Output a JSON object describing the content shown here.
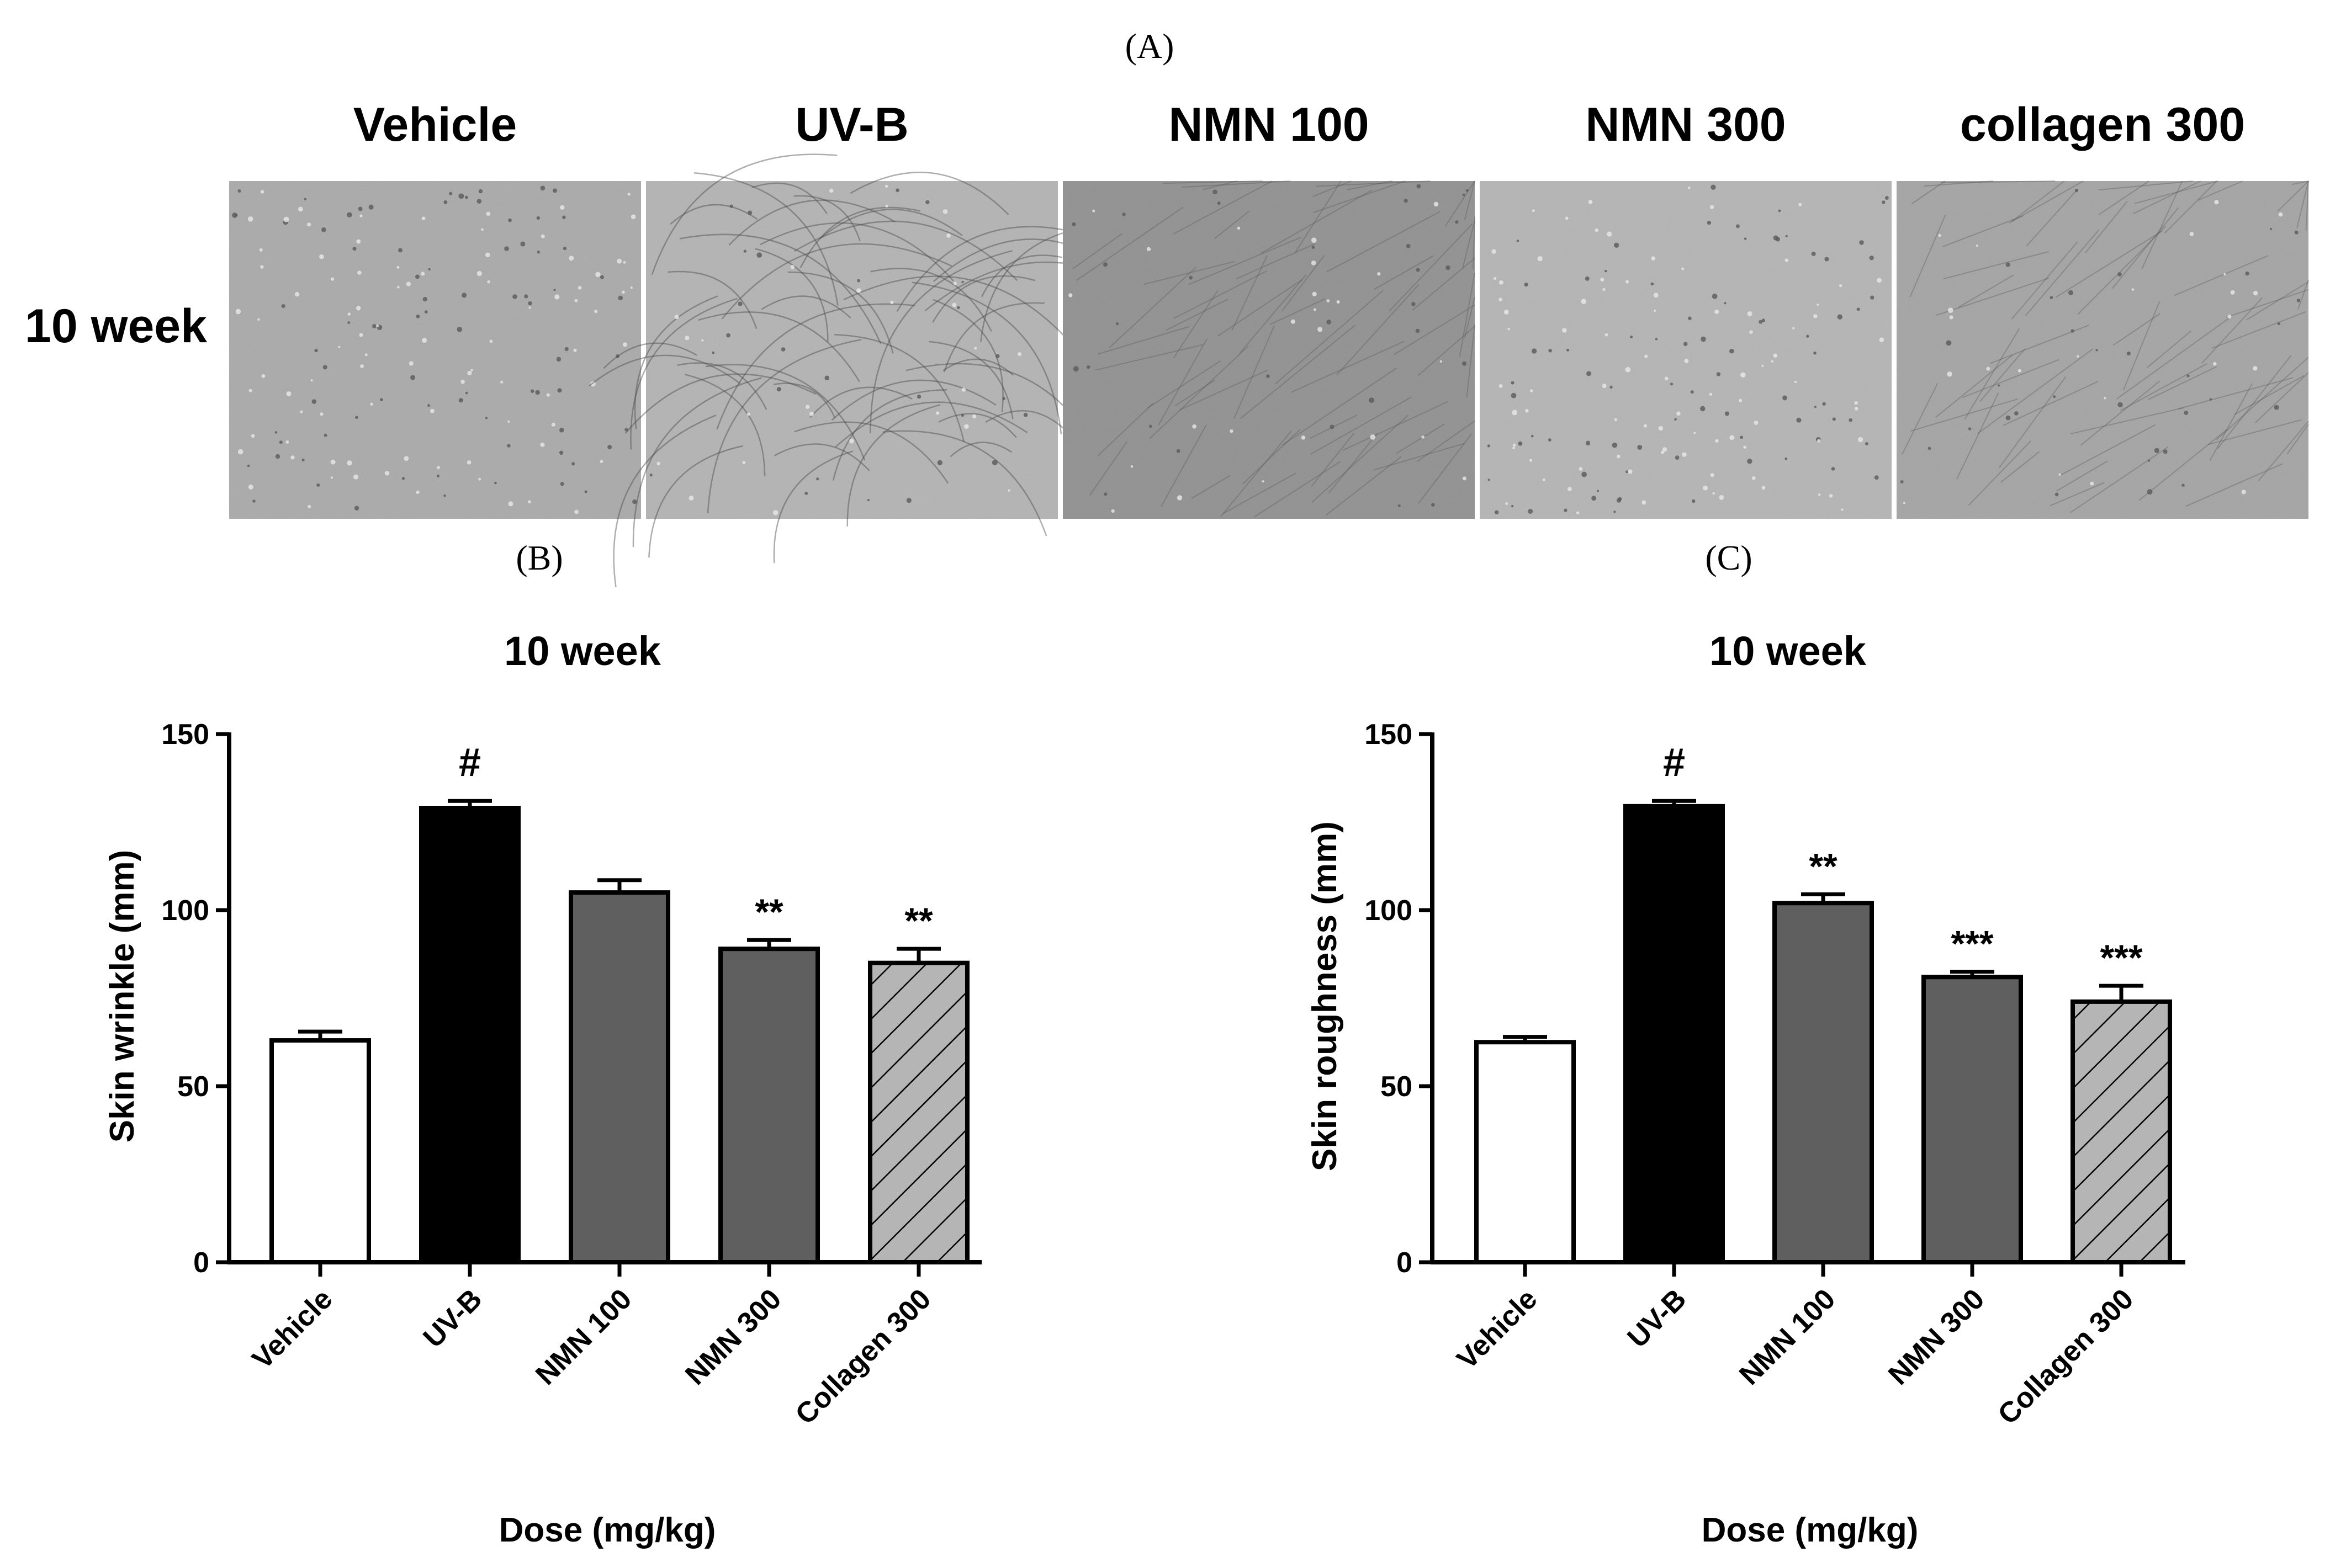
{
  "panel_a": {
    "label": "(A)",
    "row_label": "10 week",
    "photos": [
      {
        "label": "Vehicle",
        "tone": "#a9a9a9",
        "texture": "pores"
      },
      {
        "label": "UV-B",
        "tone": "#b3b3b3",
        "texture": "wrinkles"
      },
      {
        "label": "NMN 100",
        "tone": "#8f8f8f",
        "texture": "fine"
      },
      {
        "label": "NMN 300",
        "tone": "#b4b4b4",
        "texture": "pores"
      },
      {
        "label": "collagen 300",
        "tone": "#a3a3a3",
        "texture": "fine"
      }
    ]
  },
  "panel_b_label": "(B)",
  "panel_c_label": "(C)",
  "colors": {
    "white": "#ffffff",
    "black": "#000000",
    "gray": "#5f5f5f",
    "hatch_bg": "#b5b5b5"
  },
  "chart_data": [
    {
      "type": "bar",
      "title": "10 week",
      "xlabel": "Dose (mg/kg)",
      "ylabel": "Skin wrinkle (mm)",
      "ylim": [
        0,
        150
      ],
      "yticks": [
        0,
        50,
        100,
        150
      ],
      "categories": [
        "Vehicle",
        "UV-B",
        "NMN 100",
        "NMN 300",
        "Collagen 300"
      ],
      "values": [
        63,
        129,
        105,
        89,
        85
      ],
      "errors": [
        2.5,
        2,
        3.5,
        2.5,
        4
      ],
      "significance": [
        "",
        "#",
        "",
        "**",
        "**"
      ],
      "fills": [
        "white",
        "black",
        "gray",
        "gray",
        "hatch"
      ]
    },
    {
      "type": "bar",
      "title": "10 week",
      "xlabel": "Dose (mg/kg)",
      "ylabel": "Skin roughness (mm)",
      "ylim": [
        0,
        150
      ],
      "yticks": [
        0,
        50,
        100,
        150
      ],
      "categories": [
        "Vehicle",
        "UV-B",
        "NMN 100",
        "NMN 300",
        "Collagen 300"
      ],
      "values": [
        62.5,
        129.5,
        102,
        81,
        74
      ],
      "errors": [
        1.5,
        1.5,
        2.5,
        1.5,
        4.5
      ],
      "significance": [
        "",
        "#",
        "**",
        "***",
        "***"
      ],
      "fills": [
        "white",
        "black",
        "gray",
        "gray",
        "hatch"
      ]
    }
  ]
}
